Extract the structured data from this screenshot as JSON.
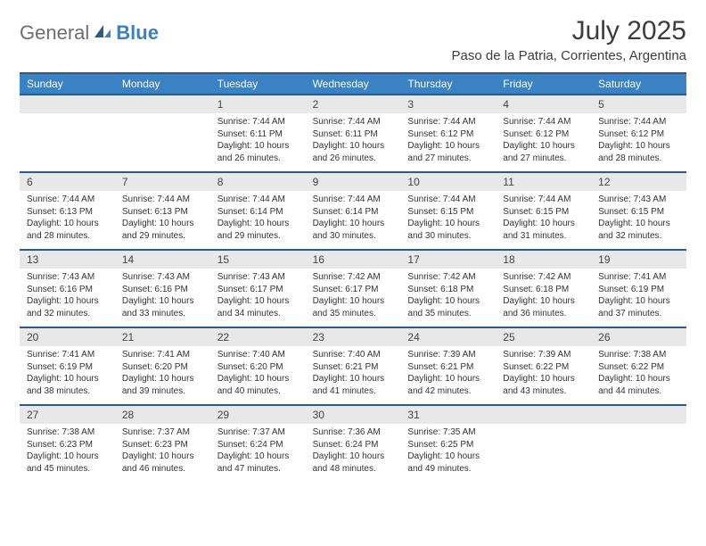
{
  "logo": {
    "general": "General",
    "blue": "Blue"
  },
  "title": "July 2025",
  "location": "Paso de la Patria, Corrientes, Argentina",
  "colors": {
    "header_bg": "#3b82c4",
    "header_border": "#2a5a88",
    "daynum_bg": "#e8e8e8",
    "text": "#333333",
    "logo_gray": "#6e6e6e",
    "logo_blue": "#3b82c4"
  },
  "fonts": {
    "title_size": 30,
    "location_size": 15,
    "dayhead_size": 12,
    "daynum_size": 12,
    "cell_size": 10
  },
  "day_headers": [
    "Sunday",
    "Monday",
    "Tuesday",
    "Wednesday",
    "Thursday",
    "Friday",
    "Saturday"
  ],
  "weeks": [
    [
      {
        "num": "",
        "sunrise": "",
        "sunset": "",
        "daylight1": "",
        "daylight2": ""
      },
      {
        "num": "",
        "sunrise": "",
        "sunset": "",
        "daylight1": "",
        "daylight2": ""
      },
      {
        "num": "1",
        "sunrise": "Sunrise: 7:44 AM",
        "sunset": "Sunset: 6:11 PM",
        "daylight1": "Daylight: 10 hours",
        "daylight2": "and 26 minutes."
      },
      {
        "num": "2",
        "sunrise": "Sunrise: 7:44 AM",
        "sunset": "Sunset: 6:11 PM",
        "daylight1": "Daylight: 10 hours",
        "daylight2": "and 26 minutes."
      },
      {
        "num": "3",
        "sunrise": "Sunrise: 7:44 AM",
        "sunset": "Sunset: 6:12 PM",
        "daylight1": "Daylight: 10 hours",
        "daylight2": "and 27 minutes."
      },
      {
        "num": "4",
        "sunrise": "Sunrise: 7:44 AM",
        "sunset": "Sunset: 6:12 PM",
        "daylight1": "Daylight: 10 hours",
        "daylight2": "and 27 minutes."
      },
      {
        "num": "5",
        "sunrise": "Sunrise: 7:44 AM",
        "sunset": "Sunset: 6:12 PM",
        "daylight1": "Daylight: 10 hours",
        "daylight2": "and 28 minutes."
      }
    ],
    [
      {
        "num": "6",
        "sunrise": "Sunrise: 7:44 AM",
        "sunset": "Sunset: 6:13 PM",
        "daylight1": "Daylight: 10 hours",
        "daylight2": "and 28 minutes."
      },
      {
        "num": "7",
        "sunrise": "Sunrise: 7:44 AM",
        "sunset": "Sunset: 6:13 PM",
        "daylight1": "Daylight: 10 hours",
        "daylight2": "and 29 minutes."
      },
      {
        "num": "8",
        "sunrise": "Sunrise: 7:44 AM",
        "sunset": "Sunset: 6:14 PM",
        "daylight1": "Daylight: 10 hours",
        "daylight2": "and 29 minutes."
      },
      {
        "num": "9",
        "sunrise": "Sunrise: 7:44 AM",
        "sunset": "Sunset: 6:14 PM",
        "daylight1": "Daylight: 10 hours",
        "daylight2": "and 30 minutes."
      },
      {
        "num": "10",
        "sunrise": "Sunrise: 7:44 AM",
        "sunset": "Sunset: 6:15 PM",
        "daylight1": "Daylight: 10 hours",
        "daylight2": "and 30 minutes."
      },
      {
        "num": "11",
        "sunrise": "Sunrise: 7:44 AM",
        "sunset": "Sunset: 6:15 PM",
        "daylight1": "Daylight: 10 hours",
        "daylight2": "and 31 minutes."
      },
      {
        "num": "12",
        "sunrise": "Sunrise: 7:43 AM",
        "sunset": "Sunset: 6:15 PM",
        "daylight1": "Daylight: 10 hours",
        "daylight2": "and 32 minutes."
      }
    ],
    [
      {
        "num": "13",
        "sunrise": "Sunrise: 7:43 AM",
        "sunset": "Sunset: 6:16 PM",
        "daylight1": "Daylight: 10 hours",
        "daylight2": "and 32 minutes."
      },
      {
        "num": "14",
        "sunrise": "Sunrise: 7:43 AM",
        "sunset": "Sunset: 6:16 PM",
        "daylight1": "Daylight: 10 hours",
        "daylight2": "and 33 minutes."
      },
      {
        "num": "15",
        "sunrise": "Sunrise: 7:43 AM",
        "sunset": "Sunset: 6:17 PM",
        "daylight1": "Daylight: 10 hours",
        "daylight2": "and 34 minutes."
      },
      {
        "num": "16",
        "sunrise": "Sunrise: 7:42 AM",
        "sunset": "Sunset: 6:17 PM",
        "daylight1": "Daylight: 10 hours",
        "daylight2": "and 35 minutes."
      },
      {
        "num": "17",
        "sunrise": "Sunrise: 7:42 AM",
        "sunset": "Sunset: 6:18 PM",
        "daylight1": "Daylight: 10 hours",
        "daylight2": "and 35 minutes."
      },
      {
        "num": "18",
        "sunrise": "Sunrise: 7:42 AM",
        "sunset": "Sunset: 6:18 PM",
        "daylight1": "Daylight: 10 hours",
        "daylight2": "and 36 minutes."
      },
      {
        "num": "19",
        "sunrise": "Sunrise: 7:41 AM",
        "sunset": "Sunset: 6:19 PM",
        "daylight1": "Daylight: 10 hours",
        "daylight2": "and 37 minutes."
      }
    ],
    [
      {
        "num": "20",
        "sunrise": "Sunrise: 7:41 AM",
        "sunset": "Sunset: 6:19 PM",
        "daylight1": "Daylight: 10 hours",
        "daylight2": "and 38 minutes."
      },
      {
        "num": "21",
        "sunrise": "Sunrise: 7:41 AM",
        "sunset": "Sunset: 6:20 PM",
        "daylight1": "Daylight: 10 hours",
        "daylight2": "and 39 minutes."
      },
      {
        "num": "22",
        "sunrise": "Sunrise: 7:40 AM",
        "sunset": "Sunset: 6:20 PM",
        "daylight1": "Daylight: 10 hours",
        "daylight2": "and 40 minutes."
      },
      {
        "num": "23",
        "sunrise": "Sunrise: 7:40 AM",
        "sunset": "Sunset: 6:21 PM",
        "daylight1": "Daylight: 10 hours",
        "daylight2": "and 41 minutes."
      },
      {
        "num": "24",
        "sunrise": "Sunrise: 7:39 AM",
        "sunset": "Sunset: 6:21 PM",
        "daylight1": "Daylight: 10 hours",
        "daylight2": "and 42 minutes."
      },
      {
        "num": "25",
        "sunrise": "Sunrise: 7:39 AM",
        "sunset": "Sunset: 6:22 PM",
        "daylight1": "Daylight: 10 hours",
        "daylight2": "and 43 minutes."
      },
      {
        "num": "26",
        "sunrise": "Sunrise: 7:38 AM",
        "sunset": "Sunset: 6:22 PM",
        "daylight1": "Daylight: 10 hours",
        "daylight2": "and 44 minutes."
      }
    ],
    [
      {
        "num": "27",
        "sunrise": "Sunrise: 7:38 AM",
        "sunset": "Sunset: 6:23 PM",
        "daylight1": "Daylight: 10 hours",
        "daylight2": "and 45 minutes."
      },
      {
        "num": "28",
        "sunrise": "Sunrise: 7:37 AM",
        "sunset": "Sunset: 6:23 PM",
        "daylight1": "Daylight: 10 hours",
        "daylight2": "and 46 minutes."
      },
      {
        "num": "29",
        "sunrise": "Sunrise: 7:37 AM",
        "sunset": "Sunset: 6:24 PM",
        "daylight1": "Daylight: 10 hours",
        "daylight2": "and 47 minutes."
      },
      {
        "num": "30",
        "sunrise": "Sunrise: 7:36 AM",
        "sunset": "Sunset: 6:24 PM",
        "daylight1": "Daylight: 10 hours",
        "daylight2": "and 48 minutes."
      },
      {
        "num": "31",
        "sunrise": "Sunrise: 7:35 AM",
        "sunset": "Sunset: 6:25 PM",
        "daylight1": "Daylight: 10 hours",
        "daylight2": "and 49 minutes."
      },
      {
        "num": "",
        "sunrise": "",
        "sunset": "",
        "daylight1": "",
        "daylight2": ""
      },
      {
        "num": "",
        "sunrise": "",
        "sunset": "",
        "daylight1": "",
        "daylight2": ""
      }
    ]
  ]
}
